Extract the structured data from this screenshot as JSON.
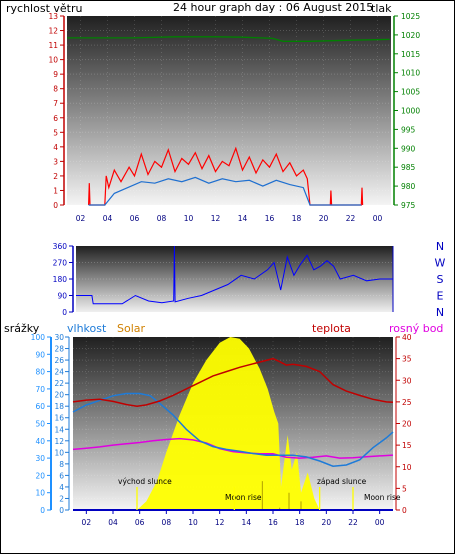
{
  "colors": {
    "wind": "#ff0000",
    "wind_gust": "#1e6fd0",
    "pressure": "#008000",
    "direction": "#0000ff",
    "rain": "#1e90ff",
    "humidity": "#1e7bd8",
    "solar": "#ffff00",
    "temperature": "#c00000",
    "dewpoint": "#e000e0",
    "title": "#000080",
    "axis_blue": "#0000c0"
  },
  "chart_data": [
    {
      "type": "line",
      "title": "24 hour graph day : 06 August 2015",
      "left_axis_label": "rychlost větru",
      "right_axis_label": "tlak",
      "x_tick_labels": [
        "02",
        "04",
        "06",
        "08",
        "10",
        "12",
        "14",
        "16",
        "18",
        "20",
        "22",
        "00"
      ],
      "x_range": [
        1,
        25
      ],
      "left_ylim": [
        0,
        13
      ],
      "left_ticks": [
        0,
        1,
        2,
        3,
        4,
        5,
        6,
        7,
        8,
        9,
        10,
        11,
        12,
        13
      ],
      "right_ylim": [
        975,
        1025
      ],
      "right_ticks": [
        975,
        980,
        985,
        990,
        995,
        1000,
        1005,
        1010,
        1015,
        1020,
        1025
      ],
      "pressure": {
        "x": [
          1,
          6,
          9,
          12,
          14,
          16.2,
          17,
          19,
          22,
          24.9
        ],
        "y": [
          1019.2,
          1019.2,
          1019.5,
          1019.5,
          1019.4,
          1019.1,
          1018.3,
          1018.3,
          1018.6,
          1018.8
        ]
      },
      "wind": {
        "x": [
          2.6,
          2.65,
          2.7,
          3.8,
          3.9,
          4.1,
          4.5,
          5.0,
          5.6,
          6.0,
          6.5,
          7.0,
          7.5,
          8.0,
          8.5,
          9.0,
          9.5,
          10.0,
          10.5,
          11.0,
          11.5,
          12.0,
          12.5,
          13.0,
          13.5,
          14.0,
          14.5,
          15.0,
          15.5,
          16.0,
          16.5,
          17.0,
          17.5,
          18.0,
          18.5,
          18.8,
          19.0,
          20.5,
          20.55,
          20.6,
          22.8,
          22.85,
          22.9
        ],
        "y": [
          0,
          1.5,
          0,
          0,
          2,
          1.2,
          2.4,
          1.6,
          2.6,
          2.0,
          3.5,
          2.1,
          3.0,
          2.6,
          3.8,
          2.3,
          3.2,
          2.8,
          3.6,
          2.5,
          3.4,
          2.3,
          3.0,
          2.7,
          3.9,
          2.4,
          3.3,
          2.2,
          3.1,
          2.6,
          3.5,
          2.3,
          2.9,
          2.0,
          2.4,
          1.8,
          0,
          0,
          1.0,
          0,
          0,
          1.2,
          0
        ]
      },
      "wind_avg": {
        "x": [
          2.6,
          3.8,
          4.5,
          5.5,
          6.5,
          7.5,
          8.5,
          9.5,
          10.5,
          11.5,
          12.5,
          13.5,
          14.5,
          15.5,
          16.5,
          17.5,
          18.5,
          19.0,
          20.5,
          22.8
        ],
        "y": [
          0,
          0,
          0.8,
          1.2,
          1.6,
          1.5,
          1.8,
          1.6,
          1.9,
          1.5,
          1.8,
          1.6,
          1.7,
          1.3,
          1.7,
          1.4,
          1.2,
          0,
          0,
          0
        ]
      }
    },
    {
      "type": "scatter",
      "right_labels": [
        "N",
        "W",
        "S",
        "E",
        "N"
      ],
      "x_range": [
        1,
        25
      ],
      "ylim": [
        0,
        360
      ],
      "ticks": [
        0,
        90,
        180,
        270,
        360
      ],
      "direction": {
        "x": [
          1,
          2.2,
          2.3,
          4.5,
          5.5,
          6.5,
          7.5,
          8.4,
          8.45,
          8.5,
          9.5,
          10.5,
          11.5,
          12.5,
          13.5,
          14.5,
          15.5,
          16.0,
          16.5,
          17.0,
          17.5,
          18.0,
          18.5,
          19.0,
          19.5,
          20.0,
          20.5,
          21.0,
          22.0,
          23.0,
          24.0,
          25.0
        ],
        "y": [
          90,
          90,
          45,
          45,
          90,
          60,
          50,
          60,
          360,
          55,
          75,
          90,
          120,
          150,
          200,
          180,
          230,
          270,
          120,
          300,
          200,
          260,
          310,
          230,
          250,
          280,
          250,
          180,
          200,
          170,
          180,
          180
        ]
      }
    },
    {
      "type": "line",
      "top_labels": [
        "srážky",
        "vlhkost",
        "Solar",
        "teplota",
        "rosný bod"
      ],
      "annotations": [
        "východ slunce",
        "Moon rise",
        "západ slunce",
        "Moon rise"
      ],
      "x_tick_labels": [
        "02",
        "04",
        "06",
        "08",
        "10",
        "12",
        "14",
        "16",
        "18",
        "20",
        "22",
        "00"
      ],
      "x_range": [
        1,
        25
      ],
      "rain_ticks": [
        0,
        10,
        20,
        30,
        40,
        50,
        60,
        70,
        80,
        90,
        100
      ],
      "humidity_ticks": [
        0,
        2,
        4,
        6,
        8,
        10,
        12,
        14,
        16,
        18,
        20,
        22,
        24,
        26,
        28,
        30
      ],
      "temp_ticks": [
        0,
        5,
        10,
        15,
        20,
        25,
        30,
        35,
        40
      ],
      "humidity": {
        "x": [
          1,
          2,
          3,
          4,
          5,
          6,
          6.8,
          7.5,
          8.5,
          9.5,
          10.5,
          11.5,
          12.5,
          13.5,
          14.5,
          15.5,
          16.5,
          17.5,
          18.5,
          19.5,
          20.5,
          21.5,
          22.5,
          23.5,
          24.5,
          25
        ],
        "y": [
          17,
          18.2,
          19,
          19.8,
          20.2,
          20.2,
          19.8,
          18.5,
          16.5,
          14,
          12,
          11,
          10.5,
          10.2,
          9.8,
          9.5,
          9.5,
          9.5,
          9.2,
          8.5,
          7.6,
          7.8,
          8.7,
          10.8,
          12.5,
          13.5
        ]
      },
      "temperature": {
        "x": [
          1,
          2,
          3,
          4,
          5,
          5.8,
          6.5,
          7.5,
          8.5,
          9.5,
          10.5,
          11.5,
          12.5,
          13.5,
          14.5,
          15.5,
          16.0,
          16.5,
          17.0,
          17.5,
          18.5,
          19.5,
          20.5,
          21.5,
          22.5,
          23.5,
          24.5,
          25
        ],
        "y": [
          25,
          25.4,
          25.6,
          25.1,
          24.4,
          24.0,
          24.3,
          25.2,
          26.5,
          28,
          29.5,
          31,
          32,
          33,
          33.8,
          34.6,
          35,
          34.3,
          33.5,
          33.7,
          33.2,
          32,
          29,
          27.5,
          26.5,
          25.6,
          25,
          24.9
        ]
      },
      "dewpoint": {
        "x": [
          1,
          2,
          3,
          4,
          5,
          6,
          7,
          8,
          9,
          10,
          11,
          12,
          13,
          14,
          15,
          16,
          17,
          18,
          19,
          20,
          21,
          22,
          23,
          24,
          25
        ],
        "y": [
          14,
          14.3,
          14.6,
          15,
          15.3,
          15.6,
          16,
          16.3,
          16.5,
          16.2,
          15.5,
          14.2,
          13.5,
          13.2,
          13,
          13,
          12.2,
          12,
          12.2,
          12.5,
          12,
          12.1,
          12.3,
          12.5,
          12.7
        ]
      },
      "solar": {
        "x": [
          5.8,
          6.5,
          7.3,
          8.0,
          9.0,
          10.0,
          11.0,
          12.0,
          12.8,
          13.5,
          14.2,
          15.0,
          15.6,
          16.1,
          16.4,
          16.6,
          17.1,
          17.4,
          17.8,
          18.1,
          18.6,
          19.1,
          19.5
        ],
        "y": [
          0,
          1.5,
          5.0,
          10.0,
          16.5,
          22,
          26,
          29,
          30,
          29.7,
          28,
          24.5,
          21,
          17,
          15,
          4,
          13,
          7,
          10,
          3,
          6.5,
          2,
          0
        ]
      }
    }
  ]
}
